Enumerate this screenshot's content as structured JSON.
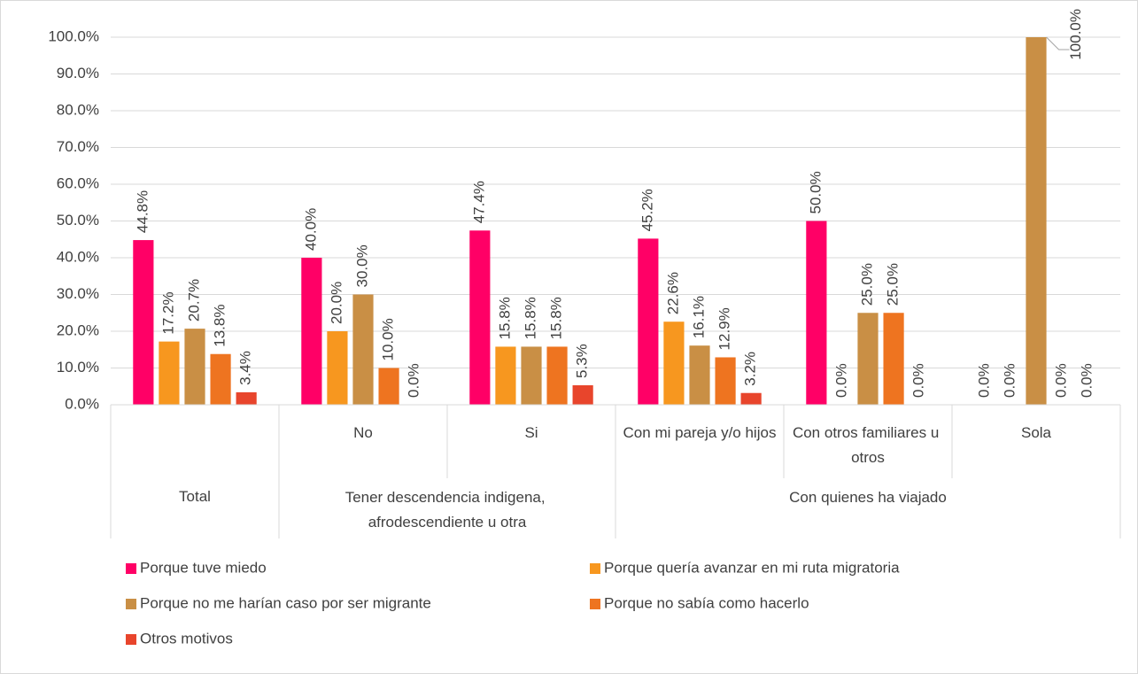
{
  "chart_data": {
    "type": "bar",
    "category_groups": [
      {
        "label": "Total",
        "categories": [
          null
        ]
      },
      {
        "label": "Tener descendencia indigena, afrodescendiente u otra",
        "categories": [
          "No",
          "Si"
        ]
      },
      {
        "label": "Con quienes ha viajado",
        "categories": [
          "Con mi pareja y/o hijos",
          "Con otros familiares u otros",
          "Sola"
        ]
      }
    ],
    "series": [
      {
        "name": "Porque tuve miedo",
        "color": "#ff0066",
        "values": [
          44.8,
          40.0,
          47.4,
          45.2,
          50.0,
          0.0
        ],
        "value_labels": [
          "44.8%",
          "40.0%",
          "47.4%",
          "45.2%",
          "50.0%",
          "0.0%"
        ]
      },
      {
        "name": "Porque quería avanzar en mi ruta migratoria",
        "color": "#f7971f",
        "values": [
          17.2,
          20.0,
          15.8,
          22.6,
          0.0,
          0.0
        ],
        "value_labels": [
          "17.2%",
          "20.0%",
          "15.8%",
          "22.6%",
          "0.0%",
          "0.0%"
        ]
      },
      {
        "name": "Porque no me harían caso por ser migrante",
        "color": "#c98f45",
        "values": [
          20.7,
          30.0,
          15.8,
          16.1,
          25.0,
          100.0
        ],
        "value_labels": [
          "20.7%",
          "30.0%",
          "15.8%",
          "16.1%",
          "25.0%",
          "100.0%"
        ]
      },
      {
        "name": "Porque no sabía como hacerlo",
        "color": "#ee7420",
        "values": [
          13.8,
          10.0,
          15.8,
          12.9,
          25.0,
          0.0
        ],
        "value_labels": [
          "13.8%",
          "10.0%",
          "15.8%",
          "12.9%",
          "25.0%",
          "0.0%"
        ]
      },
      {
        "name": "Otros motivos",
        "color": "#e8452c",
        "values": [
          3.4,
          0.0,
          5.3,
          3.2,
          0.0,
          0.0
        ],
        "value_labels": [
          "3.4%",
          "0.0%",
          "5.3%",
          "3.2%",
          "0.0%",
          "0.0%"
        ]
      }
    ],
    "ylim": [
      0,
      100
    ],
    "yticks": [
      {
        "value": 0,
        "label": "0.0%"
      },
      {
        "value": 10,
        "label": "10.0%"
      },
      {
        "value": 20,
        "label": "20.0%"
      },
      {
        "value": 30,
        "label": "30.0%"
      },
      {
        "value": 40,
        "label": "40.0%"
      },
      {
        "value": 50,
        "label": "50.0%"
      },
      {
        "value": 60,
        "label": "60.0%"
      },
      {
        "value": 70,
        "label": "70.0%"
      },
      {
        "value": 80,
        "label": "80.0%"
      },
      {
        "value": 90,
        "label": "90.0%"
      },
      {
        "value": 100,
        "label": "100.0%"
      }
    ],
    "grid": true,
    "legend": "bottom"
  }
}
